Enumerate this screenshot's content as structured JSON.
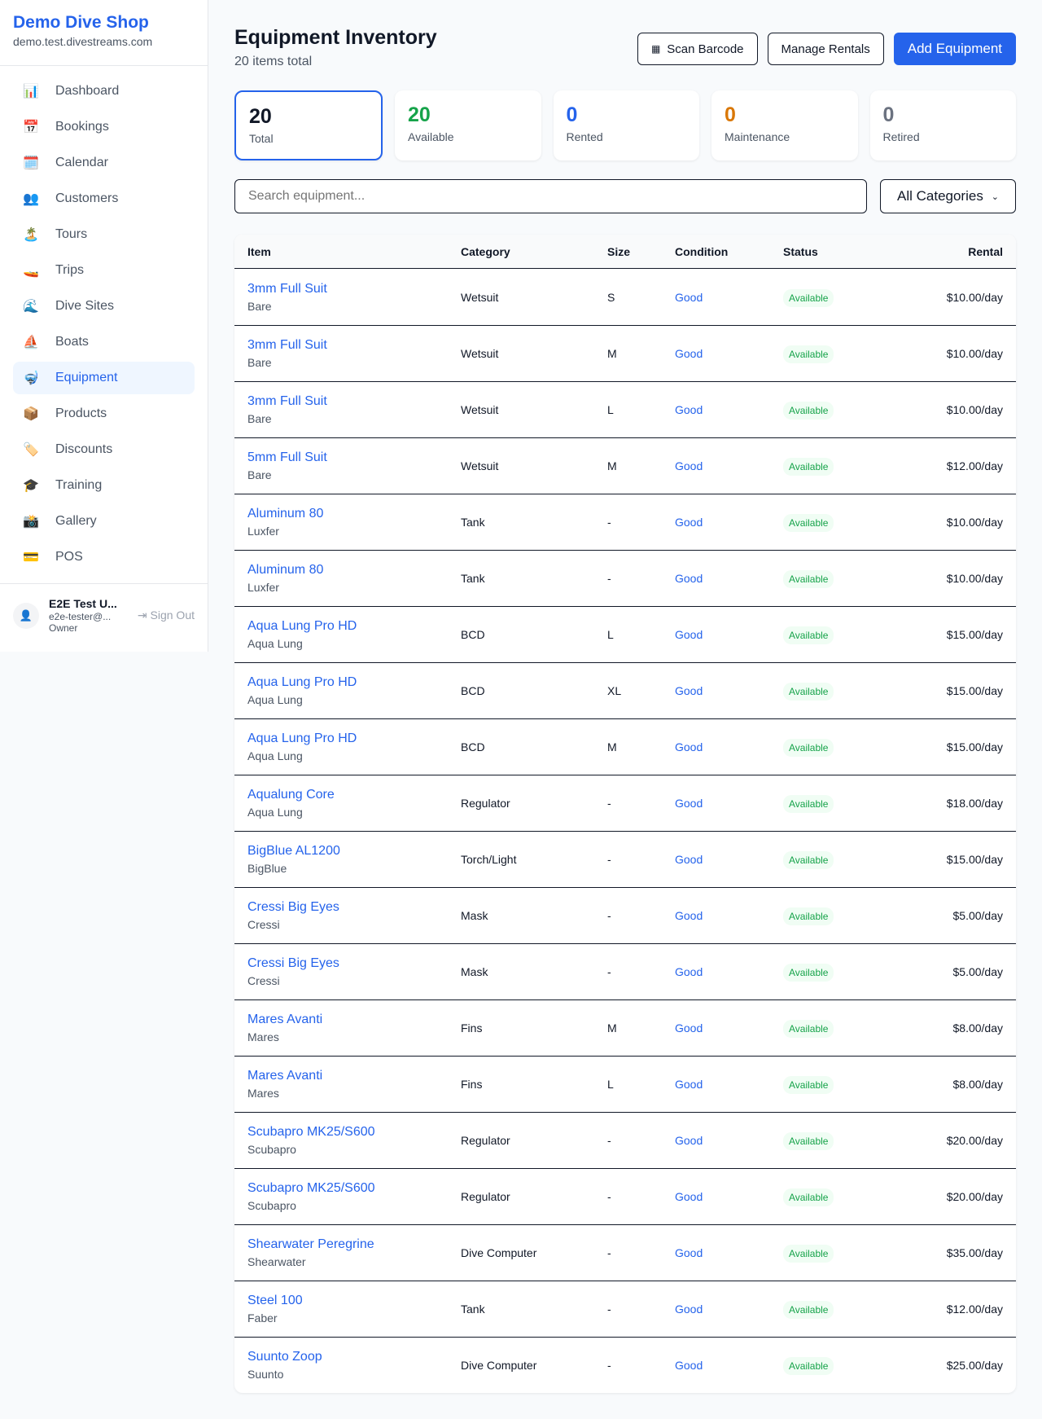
{
  "sidebar": {
    "brand": "Demo Dive Shop",
    "domain": "demo.test.divestreams.com",
    "items": [
      {
        "label": "Dashboard",
        "icon": "📊"
      },
      {
        "label": "Bookings",
        "icon": "📅"
      },
      {
        "label": "Calendar",
        "icon": "🗓️"
      },
      {
        "label": "Customers",
        "icon": "👥"
      },
      {
        "label": "Tours",
        "icon": "🏝️"
      },
      {
        "label": "Trips",
        "icon": "🚤"
      },
      {
        "label": "Dive Sites",
        "icon": "🌊"
      },
      {
        "label": "Boats",
        "icon": "⛵"
      },
      {
        "label": "Equipment",
        "icon": "🤿"
      },
      {
        "label": "Products",
        "icon": "📦"
      },
      {
        "label": "Discounts",
        "icon": "🏷️"
      },
      {
        "label": "Training",
        "icon": "🎓"
      },
      {
        "label": "Gallery",
        "icon": "📸"
      },
      {
        "label": "POS",
        "icon": "💳"
      }
    ],
    "active": "Equipment",
    "user": {
      "name": "E2E Test U...",
      "email": "e2e-tester@...",
      "role": "Owner",
      "sign_out": "Sign Out"
    }
  },
  "header": {
    "title": "Equipment Inventory",
    "subtitle": "20 items total",
    "scan": "Scan Barcode",
    "manage": "Manage Rentals",
    "add": "Add Equipment"
  },
  "stats": [
    {
      "value": "20",
      "label": "Total",
      "color": "#111827"
    },
    {
      "value": "20",
      "label": "Available",
      "color": "#16a34a"
    },
    {
      "value": "0",
      "label": "Rented",
      "color": "#2563eb"
    },
    {
      "value": "0",
      "label": "Maintenance",
      "color": "#d97706"
    },
    {
      "value": "0",
      "label": "Retired",
      "color": "#6b7280"
    }
  ],
  "filters": {
    "search_placeholder": "Search equipment...",
    "category": "All Categories"
  },
  "table": {
    "columns": [
      "Item",
      "Category",
      "Size",
      "Condition",
      "Status",
      "Rental"
    ],
    "rows": [
      [
        "3mm Full Suit",
        "Bare",
        "Wetsuit",
        "S",
        "Good",
        "Available",
        "$10.00/day"
      ],
      [
        "3mm Full Suit",
        "Bare",
        "Wetsuit",
        "M",
        "Good",
        "Available",
        "$10.00/day"
      ],
      [
        "3mm Full Suit",
        "Bare",
        "Wetsuit",
        "L",
        "Good",
        "Available",
        "$10.00/day"
      ],
      [
        "5mm Full Suit",
        "Bare",
        "Wetsuit",
        "M",
        "Good",
        "Available",
        "$12.00/day"
      ],
      [
        "Aluminum 80",
        "Luxfer",
        "Tank",
        "-",
        "Good",
        "Available",
        "$10.00/day"
      ],
      [
        "Aluminum 80",
        "Luxfer",
        "Tank",
        "-",
        "Good",
        "Available",
        "$10.00/day"
      ],
      [
        "Aqua Lung Pro HD",
        "Aqua Lung",
        "BCD",
        "L",
        "Good",
        "Available",
        "$15.00/day"
      ],
      [
        "Aqua Lung Pro HD",
        "Aqua Lung",
        "BCD",
        "XL",
        "Good",
        "Available",
        "$15.00/day"
      ],
      [
        "Aqua Lung Pro HD",
        "Aqua Lung",
        "BCD",
        "M",
        "Good",
        "Available",
        "$15.00/day"
      ],
      [
        "Aqualung Core",
        "Aqua Lung",
        "Regulator",
        "-",
        "Good",
        "Available",
        "$18.00/day"
      ],
      [
        "BigBlue AL1200",
        "BigBlue",
        "Torch/Light",
        "-",
        "Good",
        "Available",
        "$15.00/day"
      ],
      [
        "Cressi Big Eyes",
        "Cressi",
        "Mask",
        "-",
        "Good",
        "Available",
        "$5.00/day"
      ],
      [
        "Cressi Big Eyes",
        "Cressi",
        "Mask",
        "-",
        "Good",
        "Available",
        "$5.00/day"
      ],
      [
        "Mares Avanti",
        "Mares",
        "Fins",
        "M",
        "Good",
        "Available",
        "$8.00/day"
      ],
      [
        "Mares Avanti",
        "Mares",
        "Fins",
        "L",
        "Good",
        "Available",
        "$8.00/day"
      ],
      [
        "Scubapro MK25/S600",
        "Scubapro",
        "Regulator",
        "-",
        "Good",
        "Available",
        "$20.00/day"
      ],
      [
        "Scubapro MK25/S600",
        "Scubapro",
        "Regulator",
        "-",
        "Good",
        "Available",
        "$20.00/day"
      ],
      [
        "Shearwater Peregrine",
        "Shearwater",
        "Dive Computer",
        "-",
        "Good",
        "Available",
        "$35.00/day"
      ],
      [
        "Steel 100",
        "Faber",
        "Tank",
        "-",
        "Good",
        "Available",
        "$12.00/day"
      ],
      [
        "Suunto Zoop",
        "Suunto",
        "Dive Computer",
        "-",
        "Good",
        "Available",
        "$25.00/day"
      ]
    ]
  }
}
